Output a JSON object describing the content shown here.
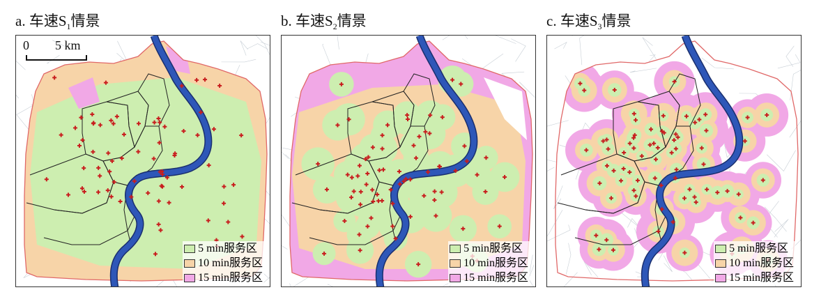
{
  "panels": [
    {
      "id": "a",
      "title_prefix": "a. 车速S",
      "title_sub": "1",
      "title_suffix": "情景",
      "fill": "s1"
    },
    {
      "id": "b",
      "title_prefix": "b. 车速S",
      "title_sub": "2",
      "title_suffix": "情景",
      "fill": "s2"
    },
    {
      "id": "c",
      "title_prefix": "c. 车速S",
      "title_sub": "3",
      "title_suffix": "情景",
      "fill": "s3"
    }
  ],
  "scalebar": {
    "zero": "0",
    "five": "5 km"
  },
  "legend": [
    {
      "label": "5 min服务区",
      "color": "#cdeeb0"
    },
    {
      "label": "10 min服务区",
      "color": "#f7d4a8"
    },
    {
      "label": "15 min服务区",
      "color": "#f1a8e6"
    }
  ],
  "colors": {
    "river": "#2e57b8",
    "river_edge": "#1a2f6e",
    "boundary_outer": "#e06868",
    "district_line": "#222222",
    "facility": "#c81e1e",
    "roads": "#c8cfd6"
  }
}
